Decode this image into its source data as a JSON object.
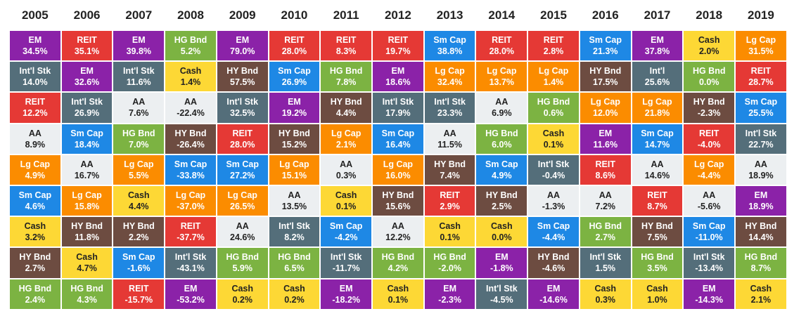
{
  "chart_data": {
    "type": "table",
    "title": "",
    "years": [
      "2005",
      "2006",
      "2007",
      "2008",
      "2009",
      "2010",
      "2011",
      "2012",
      "2013",
      "2014",
      "2015",
      "2016",
      "2017",
      "2018",
      "2019"
    ],
    "asset_classes": {
      "EM": {
        "color": "#8B22A8"
      },
      "REIT": {
        "color": "#E53935"
      },
      "HG Bnd": {
        "color": "#7CB342"
      },
      "Sm Cap": {
        "color": "#1E88E5"
      },
      "Cash": {
        "color": "#FDD835"
      },
      "Lg Cap": {
        "color": "#FB8C00"
      },
      "Int'l Stk": {
        "color": "#546E7A"
      },
      "HY Bnd": {
        "color": "#6D4C41"
      },
      "AA": {
        "color": "#ECEFF1"
      },
      "Int'l": {
        "color": "#546E7A"
      }
    },
    "columns": [
      [
        [
          "EM",
          "34.5%"
        ],
        [
          "Int'l Stk",
          "14.0%"
        ],
        [
          "REIT",
          "12.2%"
        ],
        [
          "AA",
          "8.9%"
        ],
        [
          "Lg Cap",
          "4.9%"
        ],
        [
          "Sm Cap",
          "4.6%"
        ],
        [
          "Cash",
          "3.2%"
        ],
        [
          "HY Bnd",
          "2.7%"
        ],
        [
          "HG Bnd",
          "2.4%"
        ]
      ],
      [
        [
          "REIT",
          "35.1%"
        ],
        [
          "EM",
          "32.6%"
        ],
        [
          "Int'l Stk",
          "26.9%"
        ],
        [
          "Sm Cap",
          "18.4%"
        ],
        [
          "AA",
          "16.7%"
        ],
        [
          "Lg Cap",
          "15.8%"
        ],
        [
          "HY Bnd",
          "11.8%"
        ],
        [
          "Cash",
          "4.7%"
        ],
        [
          "HG Bnd",
          "4.3%"
        ]
      ],
      [
        [
          "EM",
          "39.8%"
        ],
        [
          "Int'l Stk",
          "11.6%"
        ],
        [
          "AA",
          "7.6%"
        ],
        [
          "HG Bnd",
          "7.0%"
        ],
        [
          "Lg Cap",
          "5.5%"
        ],
        [
          "Cash",
          "4.4%"
        ],
        [
          "HY Bnd",
          "2.2%"
        ],
        [
          "Sm Cap",
          "-1.6%"
        ],
        [
          "REIT",
          "-15.7%"
        ]
      ],
      [
        [
          "HG Bnd",
          "5.2%"
        ],
        [
          "Cash",
          "1.4%"
        ],
        [
          "AA",
          "-22.4%"
        ],
        [
          "HY Bnd",
          "-26.4%"
        ],
        [
          "Sm Cap",
          "-33.8%"
        ],
        [
          "Lg Cap",
          "-37.0%"
        ],
        [
          "REIT",
          "-37.7%"
        ],
        [
          "Int'l Stk",
          "-43.1%"
        ],
        [
          "EM",
          "-53.2%"
        ]
      ],
      [
        [
          "EM",
          "79.0%"
        ],
        [
          "HY Bnd",
          "57.5%"
        ],
        [
          "Int'l Stk",
          "32.5%"
        ],
        [
          "REIT",
          "28.0%"
        ],
        [
          "Sm Cap",
          "27.2%"
        ],
        [
          "Lg Cap",
          "26.5%"
        ],
        [
          "AA",
          "24.6%"
        ],
        [
          "HG Bnd",
          "5.9%"
        ],
        [
          "Cash",
          "0.2%"
        ]
      ],
      [
        [
          "REIT",
          "28.0%"
        ],
        [
          "Sm Cap",
          "26.9%"
        ],
        [
          "EM",
          "19.2%"
        ],
        [
          "HY Bnd",
          "15.2%"
        ],
        [
          "Lg Cap",
          "15.1%"
        ],
        [
          "AA",
          "13.5%"
        ],
        [
          "Int'l Stk",
          "8.2%"
        ],
        [
          "HG Bnd",
          "6.5%"
        ],
        [
          "Cash",
          "0.2%"
        ]
      ],
      [
        [
          "REIT",
          "8.3%"
        ],
        [
          "HG Bnd",
          "7.8%"
        ],
        [
          "HY Bnd",
          "4.4%"
        ],
        [
          "Lg Cap",
          "2.1%"
        ],
        [
          "AA",
          "0.3%"
        ],
        [
          "Cash",
          "0.1%"
        ],
        [
          "Sm Cap",
          "-4.2%"
        ],
        [
          "Int'l Stk",
          "-11.7%"
        ],
        [
          "EM",
          "-18.2%"
        ]
      ],
      [
        [
          "REIT",
          "19.7%"
        ],
        [
          "EM",
          "18.6%"
        ],
        [
          "Int'l Stk",
          "17.9%"
        ],
        [
          "Sm Cap",
          "16.4%"
        ],
        [
          "Lg Cap",
          "16.0%"
        ],
        [
          "HY Bnd",
          "15.6%"
        ],
        [
          "AA",
          "12.2%"
        ],
        [
          "HG Bnd",
          "4.2%"
        ],
        [
          "Cash",
          "0.1%"
        ]
      ],
      [
        [
          "Sm Cap",
          "38.8%"
        ],
        [
          "Lg Cap",
          "32.4%"
        ],
        [
          "Int'l Stk",
          "23.3%"
        ],
        [
          "AA",
          "11.5%"
        ],
        [
          "HY Bnd",
          "7.4%"
        ],
        [
          "REIT",
          "2.9%"
        ],
        [
          "Cash",
          "0.1%"
        ],
        [
          "HG Bnd",
          "-2.0%"
        ],
        [
          "EM",
          "-2.3%"
        ]
      ],
      [
        [
          "REIT",
          "28.0%"
        ],
        [
          "Lg Cap",
          "13.7%"
        ],
        [
          "AA",
          "6.9%"
        ],
        [
          "HG Bnd",
          "6.0%"
        ],
        [
          "Sm Cap",
          "4.9%"
        ],
        [
          "HY Bnd",
          "2.5%"
        ],
        [
          "Cash",
          "0.0%"
        ],
        [
          "EM",
          "-1.8%"
        ],
        [
          "Int'l Stk",
          "-4.5%"
        ]
      ],
      [
        [
          "REIT",
          "2.8%"
        ],
        [
          "Lg Cap",
          "1.4%"
        ],
        [
          "HG Bnd",
          "0.6%"
        ],
        [
          "Cash",
          "0.1%"
        ],
        [
          "Int'l Stk",
          "-0.4%"
        ],
        [
          "AA",
          "-1.3%"
        ],
        [
          "Sm Cap",
          "-4.4%"
        ],
        [
          "HY Bnd",
          "-4.6%"
        ],
        [
          "EM",
          "-14.6%"
        ]
      ],
      [
        [
          "Sm Cap",
          "21.3%"
        ],
        [
          "HY Bnd",
          "17.5%"
        ],
        [
          "Lg Cap",
          "12.0%"
        ],
        [
          "EM",
          "11.6%"
        ],
        [
          "REIT",
          "8.6%"
        ],
        [
          "AA",
          "7.2%"
        ],
        [
          "HG Bnd",
          "2.7%"
        ],
        [
          "Int'l Stk",
          "1.5%"
        ],
        [
          "Cash",
          "0.3%"
        ]
      ],
      [
        [
          "EM",
          "37.8%"
        ],
        [
          "Int'l",
          "25.6%"
        ],
        [
          "Lg Cap",
          "21.8%"
        ],
        [
          "Sm Cap",
          "14.7%"
        ],
        [
          "AA",
          "14.6%"
        ],
        [
          "REIT",
          "8.7%"
        ],
        [
          "HY Bnd",
          "7.5%"
        ],
        [
          "HG Bnd",
          "3.5%"
        ],
        [
          "Cash",
          "1.0%"
        ]
      ],
      [
        [
          "Cash",
          "2.0%"
        ],
        [
          "HG Bnd",
          "0.0%"
        ],
        [
          "HY Bnd",
          "-2.3%"
        ],
        [
          "REIT",
          "-4.0%"
        ],
        [
          "Lg Cap",
          "-4.4%"
        ],
        [
          "AA",
          "-5.6%"
        ],
        [
          "Sm Cap",
          "-11.0%"
        ],
        [
          "Int'l Stk",
          "-13.4%"
        ],
        [
          "EM",
          "-14.3%"
        ]
      ],
      [
        [
          "Lg Cap",
          "31.5%"
        ],
        [
          "REIT",
          "28.7%"
        ],
        [
          "Sm Cap",
          "25.5%"
        ],
        [
          "Int'l Stk",
          "22.7%"
        ],
        [
          "AA",
          "18.9%"
        ],
        [
          "EM",
          "18.9%"
        ],
        [
          "HY Bnd",
          "14.4%"
        ],
        [
          "HG Bnd",
          "8.7%"
        ],
        [
          "Cash",
          "2.1%"
        ]
      ]
    ]
  }
}
